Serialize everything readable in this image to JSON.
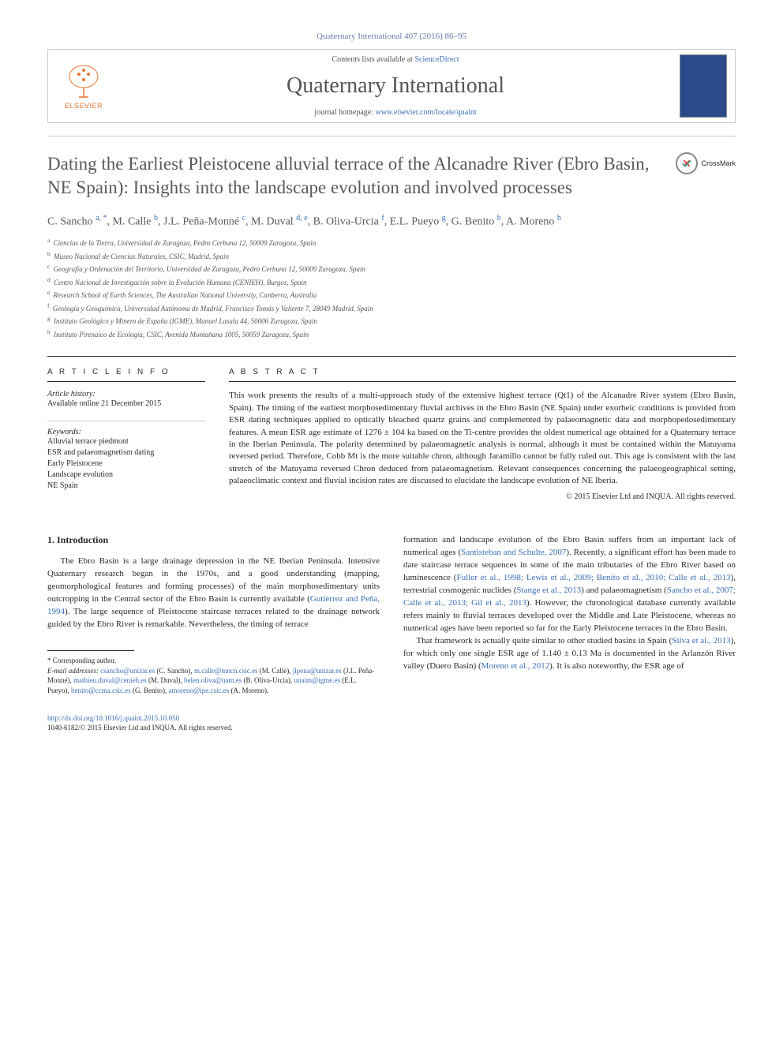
{
  "citation": "Quaternary International 407 (2016) 86–95",
  "header": {
    "contents_prefix": "Contents lists available at ",
    "contents_link": "ScienceDirect",
    "journal": "Quaternary International",
    "homepage_prefix": "journal homepage: ",
    "homepage_link": "www.elsevier.com/locate/quaint",
    "publisher": "ELSEVIER"
  },
  "crossmark_label": "CrossMark",
  "title": "Dating the Earliest Pleistocene alluvial terrace of the Alcanadre River (Ebro Basin, NE Spain): Insights into the landscape evolution and involved processes",
  "authors_html": "C. Sancho <sup>a, *</sup>, M. Calle <sup>b</sup>, J.L. Peña-Monné <sup>c</sup>, M. Duval <sup>d, e</sup>, B. Oliva-Urcia <sup>f</sup>, E.L. Pueyo <sup>g</sup>, G. Benito <sup>b</sup>, A. Moreno <sup>h</sup>",
  "affiliations": [
    "a Ciencias de la Tierra, Universidad de Zaragoza, Pedro Cerbuna 12, 50009 Zaragoza, Spain",
    "b Museo Nacional de Ciencias Naturales, CSIC, Madrid, Spain",
    "c Geografía y Ordenación del Territorio, Universidad de Zaragoza, Pedro Cerbuna 12, 50009 Zaragoza, Spain",
    "d Centro Nacional de Investigación sobre la Evolución Humana (CENIEH), Burgos, Spain",
    "e Research School of Earth Sciences, The Australian National University, Canberra, Australia",
    "f Geología y Geoquímica, Universidad Autónoma de Madrid, Francisco Tomás y Valiente 7, 28049 Madrid, Spain",
    "g Instituto Geológico y Minero de España (IGME), Manuel Lasala 44, 50006 Zaragoza, Spain",
    "h Instituto Pirenaico de Ecología, CSIC, Avenida Montañana 1005, 50059 Zaragoza, Spain"
  ],
  "article_info": {
    "heading": "A R T I C L E  I N F O",
    "history_label": "Article history:",
    "history_text": "Available online 21 December 2015",
    "keywords_label": "Keywords:",
    "keywords": [
      "Alluvial terrace piedmont",
      "ESR and palaeomagnetism dating",
      "Early Pleistocene",
      "Landscape evolution",
      "NE Spain"
    ]
  },
  "abstract": {
    "heading": "A B S T R A C T",
    "text": "This work presents the results of a multi-approach study of the extensive highest terrace (Qt1) of the Alcanadre River system (Ebro Basin, Spain). The timing of the earliest morphosedimentary fluvial archives in the Ebro Basin (NE Spain) under exorheic conditions is provided from ESR dating techniques applied to optically bleached quartz grains and complemented by palaeomagnetic data and morphopedosedimentary features. A mean ESR age estimate of 1276 ± 104 ka based on the Ti-centre provides the oldest numerical age obtained for a Quaternary terrace in the Iberian Peninsula. The polarity determined by palaeomagnetic analysis is normal, although it must be contained within the Matuyama reversed period. Therefore, Cobb Mt is the more suitable chron, although Jaramillo cannot be fully ruled out. This age is consistent with the last stretch of the Matuyama reversed Chron deduced from palaeomagnetism. Relevant consequences concerning the palaeogeographical setting, palaeoclimatic context and fluvial incision rates are discussed to elucidate the landscape evolution of NE Iberia.",
    "copyright": "© 2015 Elsevier Ltd and INQUA. All rights reserved."
  },
  "section1": {
    "heading": "1. Introduction",
    "col1": "The Ebro Basin is a large drainage depression in the NE Iberian Peninsula. Intensive Quaternary research began in the 1970s, and a good understanding (mapping, geomorphological features and forming processes) of the main morphosedimentary units outcropping in the Central sector of the Ebro Basin is currently available (<span class=\"ref\">Gutiérrez and Peña, 1994</span>). The large sequence of Pleistocene staircase terraces related to the drainage network guided by the Ebro River is remarkable. Nevertheless, the timing of terrace",
    "col2_p1": "formation and landscape evolution of the Ebro Basin suffers from an important lack of numerical ages (<span class=\"ref\">Santisteban and Schulte, 2007</span>). Recently, a significant effort has been made to date staircase terrace sequences in some of the main tributaries of the Ebro River based on luminescence (<span class=\"ref\">Fuller et al., 1998; Lewis et al., 2009; Benito et al., 2010; Calle et al., 2013</span>), terrestrial cosmogenic nuclides (<span class=\"ref\">Stange et al., 2013</span>) and palaeomagnetism (<span class=\"ref\">Sancho et al., 2007; Calle et al., 2013; Gil et al., 2013</span>). However, the chronological database currently available refers mainly to fluvial terraces developed over the Middle and Late Pleistocene, whereas no numerical ages have been reported so far for the Early Pleistocene terraces in the Ebro Basin.",
    "col2_p2": "That framework is actually quite similar to other studied basins in Spain (<span class=\"ref\">Silva et al., 2013</span>), for which only one single ESR age of 1.140 ± 0.13 Ma is documented in the Arlanzón River valley (Duero Basin) (<span class=\"ref\">Moreno et al., 2012</span>). It is also noteworthy, the ESR age of"
  },
  "footnote": {
    "corresponding": "* Corresponding author.",
    "emails_label": "E-mail addresses:",
    "emails": "csancho@unizar.es (C. Sancho), m.calle@mncn.csic.es (M. Calle), jlpena@unizar.es (J.L. Peña-Monné), mathieu.duval@cenieh.es (M. Duval), belen.oliva@uam.es (B. Oliva-Urcia), unaim@igme.es (E.L. Pueyo), benito@ccma.csic.es (G. Benito), amoreno@ipe.csic.es (A. Moreno)."
  },
  "doi": {
    "url": "http://dx.doi.org/10.1016/j.quaint.2015.10.050",
    "issn_line": "1040-6182/© 2015 Elsevier Ltd and INQUA. All rights reserved."
  },
  "colors": {
    "link": "#3a6fb7",
    "heading_gray": "#58595b",
    "elsevier_orange": "#e6762f",
    "cover_blue": "#2b4a8a"
  }
}
